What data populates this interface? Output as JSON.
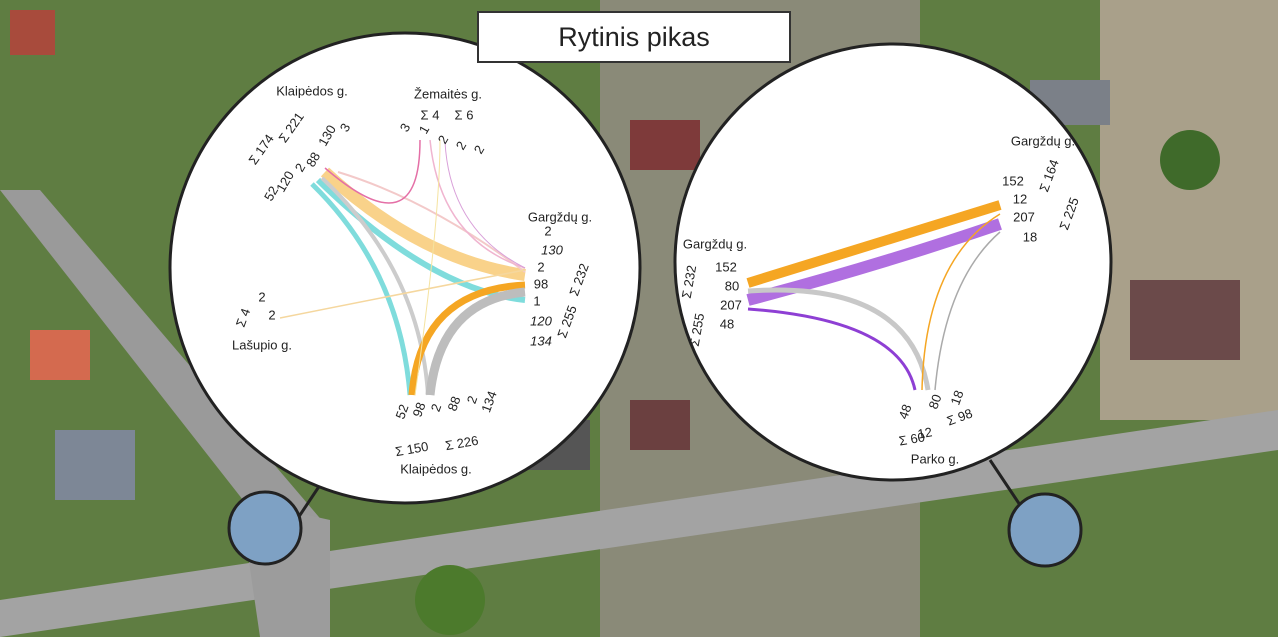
{
  "title": "Rytinis pikas",
  "left": {
    "approaches": [
      {
        "name": "Klaipėdos g.",
        "sums": [
          "Σ 174",
          "Σ 221"
        ],
        "counts": [
          "130",
          "3",
          "88",
          "2",
          "120",
          "52"
        ]
      },
      {
        "name": "Žemaitės g.",
        "sums": [
          "Σ 4",
          "Σ 6"
        ],
        "counts": [
          "3",
          "1",
          "2",
          "2",
          "2"
        ]
      },
      {
        "name": "Gargždų g.",
        "sums": [
          "Σ 232",
          "Σ 255"
        ],
        "counts": [
          "2",
          "130",
          "2",
          "98",
          "1",
          "120",
          "134"
        ]
      },
      {
        "name": "Lašupio g.",
        "sums": [
          "Σ 4"
        ],
        "counts": [
          "2",
          "2"
        ]
      },
      {
        "name": "Klaipėdos g.",
        "sums": [
          "Σ 150",
          "Σ 226"
        ],
        "counts": [
          "52",
          "98",
          "2",
          "88",
          "2",
          "134"
        ]
      }
    ]
  },
  "right": {
    "approaches": [
      {
        "name": "Gargždų g.",
        "sums": [
          "Σ 164",
          "Σ 225"
        ],
        "counts": [
          "152",
          "12",
          "207",
          "18"
        ]
      },
      {
        "name": "Gargždų g.",
        "sums": [
          "Σ 232",
          "Σ 255"
        ],
        "counts": [
          "152",
          "80",
          "207",
          "48"
        ]
      },
      {
        "name": "Parko g.",
        "sums": [
          "Σ 60",
          "Σ 98"
        ],
        "counts": [
          "48",
          "12",
          "80",
          "18"
        ]
      }
    ]
  }
}
